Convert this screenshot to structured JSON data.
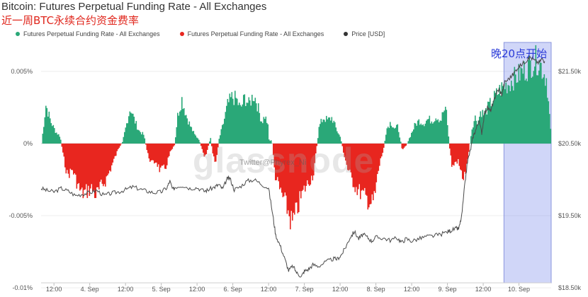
{
  "title": "Bitcoin: Futures Perpetual Funding Rate - All Exchanges",
  "subtitle": "近一周BTC永续合约资金费率",
  "annotation": "晚20点开始",
  "watermark": "glassnode",
  "watermark_handle": "Twitter@Phyrex_Ni",
  "legend": [
    {
      "label": "Futures Perpetual Funding Rate - All Exchanges",
      "color": "#2aa878"
    },
    {
      "label": "Futures Perpetual Funding Rate - All Exchanges",
      "color": "#e8261f"
    },
    {
      "label": "Price [USD]",
      "color": "#333333"
    }
  ],
  "colors": {
    "positive": "#2aa878",
    "negative": "#e8261f",
    "price": "#4a4a4a",
    "highlight": "#aab4ee"
  },
  "chart_data": {
    "type": "area",
    "title": "Bitcoin: Futures Perpetual Funding Rate - All Exchanges",
    "x_ticks": [
      "12:00",
      "4. Sep",
      "12:00",
      "5. Sep",
      "12:00",
      "6. Sep",
      "12:00",
      "7. Sep",
      "12:00",
      "8. Sep",
      "12:00",
      "9. Sep",
      "12:00",
      "10. Sep"
    ],
    "y_left_ticks": [
      "0.005%",
      "0%",
      "-0.005%",
      "-0.01%"
    ],
    "y_left_range": [
      -0.01,
      0.006
    ],
    "y_right_ticks": [
      "$21.50k",
      "$20.50k",
      "$19.50k",
      "$18.50k"
    ],
    "y_right_range": [
      18500,
      21800
    ],
    "x_range_days": [
      3.32,
      10.45
    ],
    "series": [
      {
        "name": "Futures Perpetual Funding Rate - All Exchanges",
        "unit": "%",
        "points": [
          [
            3.32,
            0.0
          ],
          [
            3.38,
            0.0027
          ],
          [
            3.45,
            0.0015
          ],
          [
            3.52,
            0.0008
          ],
          [
            3.58,
            0.0005
          ],
          [
            3.62,
            -0.0008
          ],
          [
            3.68,
            -0.0022
          ],
          [
            3.75,
            -0.0018
          ],
          [
            3.82,
            -0.0028
          ],
          [
            3.88,
            -0.0035
          ],
          [
            3.95,
            -0.0033
          ],
          [
            4.02,
            -0.0031
          ],
          [
            4.08,
            -0.0036
          ],
          [
            4.15,
            -0.003
          ],
          [
            4.22,
            -0.0025
          ],
          [
            4.28,
            -0.0018
          ],
          [
            4.35,
            -0.0009
          ],
          [
            4.4,
            -0.0003
          ],
          [
            4.45,
            0.0001
          ],
          [
            4.5,
            0.0012
          ],
          [
            4.56,
            0.0025
          ],
          [
            4.62,
            0.0016
          ],
          [
            4.68,
            0.0009
          ],
          [
            4.75,
            0.0006
          ],
          [
            4.8,
            -0.0007
          ],
          [
            4.86,
            -0.0014
          ],
          [
            4.92,
            -0.0012
          ],
          [
            4.98,
            -0.0019
          ],
          [
            5.05,
            -0.0017
          ],
          [
            5.12,
            -0.0006
          ],
          [
            5.18,
            -0.0001
          ],
          [
            5.22,
            0.0019
          ],
          [
            5.28,
            0.0031
          ],
          [
            5.34,
            0.002
          ],
          [
            5.4,
            0.0012
          ],
          [
            5.46,
            0.0006
          ],
          [
            5.52,
            0.0003
          ],
          [
            5.56,
            -0.0004
          ],
          [
            5.6,
            -0.0011
          ],
          [
            5.64,
            -0.0004
          ],
          [
            5.68,
            0.0004
          ],
          [
            5.72,
            -0.001
          ],
          [
            5.76,
            -0.0012
          ],
          [
            5.8,
            0.0003
          ],
          [
            5.86,
            0.0014
          ],
          [
            5.92,
            0.0027
          ],
          [
            5.98,
            0.0032
          ],
          [
            6.04,
            0.0031
          ],
          [
            6.1,
            0.0024
          ],
          [
            6.16,
            0.0032
          ],
          [
            6.22,
            0.0027
          ],
          [
            6.28,
            0.0034
          ],
          [
            6.32,
            0.003
          ],
          [
            6.36,
            0.0022
          ],
          [
            6.4,
            0.0015
          ],
          [
            6.44,
            0.0019
          ],
          [
            6.48,
            0.0014
          ],
          [
            6.5,
            0.0002
          ],
          [
            6.54,
            0.0002
          ],
          [
            6.58,
            -0.0021
          ],
          [
            6.64,
            -0.0031
          ],
          [
            6.7,
            -0.0038
          ],
          [
            6.76,
            -0.0046
          ],
          [
            6.82,
            -0.0056
          ],
          [
            6.88,
            -0.0048
          ],
          [
            6.94,
            -0.0038
          ],
          [
            7.0,
            -0.0031
          ],
          [
            7.06,
            -0.0026
          ],
          [
            7.12,
            -0.0021
          ],
          [
            7.16,
            -0.0005
          ],
          [
            7.2,
            0.0012
          ],
          [
            7.26,
            0.0018
          ],
          [
            7.32,
            0.0016
          ],
          [
            7.38,
            0.0018
          ],
          [
            7.44,
            0.001
          ],
          [
            7.5,
            0.0004
          ],
          [
            7.54,
            -0.0006
          ],
          [
            7.6,
            -0.0018
          ],
          [
            7.66,
            -0.0025
          ],
          [
            7.72,
            -0.0031
          ],
          [
            7.78,
            -0.0034
          ],
          [
            7.84,
            -0.0037
          ],
          [
            7.9,
            -0.004
          ],
          [
            7.94,
            -0.0042
          ],
          [
            7.98,
            -0.0036
          ],
          [
            8.02,
            -0.0021
          ],
          [
            8.06,
            -0.0011
          ],
          [
            8.1,
            -0.0004
          ],
          [
            8.14,
            0.001
          ],
          [
            8.2,
            0.0015
          ],
          [
            8.26,
            0.001
          ],
          [
            8.3,
            0.0012
          ],
          [
            8.36,
            -0.0004
          ],
          [
            8.42,
            -0.0001
          ],
          [
            8.48,
            0.0006
          ],
          [
            8.54,
            0.0013
          ],
          [
            8.6,
            0.0016
          ],
          [
            8.66,
            0.0014
          ],
          [
            8.72,
            0.0017
          ],
          [
            8.78,
            0.0016
          ],
          [
            8.84,
            0.0019
          ],
          [
            8.9,
            0.0016
          ],
          [
            8.94,
            0.0023
          ],
          [
            8.98,
            0.0022
          ],
          [
            9.02,
            -0.0002
          ],
          [
            9.06,
            -0.0017
          ],
          [
            9.1,
            -0.0013
          ],
          [
            9.14,
            -0.0012
          ],
          [
            9.18,
            -0.002
          ],
          [
            9.22,
            -0.0024
          ],
          [
            9.26,
            -0.0017
          ],
          [
            9.3,
            -0.0002
          ],
          [
            9.34,
            0.0012
          ],
          [
            9.38,
            0.0018
          ],
          [
            9.42,
            0.0015
          ],
          [
            9.46,
            0.0023
          ],
          [
            9.5,
            0.002
          ],
          [
            9.56,
            0.0025
          ],
          [
            9.62,
            0.003
          ],
          [
            9.68,
            0.0034
          ],
          [
            9.74,
            0.0038
          ],
          [
            9.8,
            0.004
          ],
          [
            9.86,
            0.0042
          ],
          [
            9.92,
            0.0045
          ],
          [
            9.98,
            0.0047
          ],
          [
            10.04,
            0.005
          ],
          [
            10.1,
            0.0052
          ],
          [
            10.16,
            0.0055
          ],
          [
            10.22,
            0.0058
          ],
          [
            10.26,
            0.0057
          ],
          [
            10.3,
            0.0054
          ],
          [
            10.35,
            0.0048
          ],
          [
            10.38,
            0.0045
          ],
          [
            10.45,
            0.0
          ]
        ]
      },
      {
        "name": "Price [USD]",
        "unit": "USD",
        "points": [
          [
            3.32,
            19880
          ],
          [
            3.4,
            19850
          ],
          [
            3.5,
            19830
          ],
          [
            3.6,
            19880
          ],
          [
            3.7,
            19840
          ],
          [
            3.8,
            19780
          ],
          [
            3.9,
            19800
          ],
          [
            4.0,
            19820
          ],
          [
            4.1,
            19850
          ],
          [
            4.2,
            19780
          ],
          [
            4.3,
            19810
          ],
          [
            4.4,
            19830
          ],
          [
            4.5,
            19860
          ],
          [
            4.6,
            19900
          ],
          [
            4.7,
            19870
          ],
          [
            4.8,
            19840
          ],
          [
            4.9,
            19820
          ],
          [
            5.0,
            19830
          ],
          [
            5.08,
            19890
          ],
          [
            5.12,
            19980
          ],
          [
            5.16,
            19860
          ],
          [
            5.2,
            19900
          ],
          [
            5.3,
            19920
          ],
          [
            5.4,
            19880
          ],
          [
            5.5,
            19890
          ],
          [
            5.6,
            19840
          ],
          [
            5.66,
            19860
          ],
          [
            5.75,
            19900
          ],
          [
            5.8,
            19930
          ],
          [
            5.86,
            19870
          ],
          [
            5.92,
            20010
          ],
          [
            5.96,
            20020
          ],
          [
            6.02,
            19860
          ],
          [
            6.1,
            19900
          ],
          [
            6.2,
            19980
          ],
          [
            6.3,
            20000
          ],
          [
            6.4,
            19940
          ],
          [
            6.5,
            19880
          ],
          [
            6.56,
            19500
          ],
          [
            6.6,
            19230
          ],
          [
            6.66,
            19090
          ],
          [
            6.72,
            18920
          ],
          [
            6.78,
            18740
          ],
          [
            6.84,
            18800
          ],
          [
            6.9,
            18700
          ],
          [
            6.96,
            18660
          ],
          [
            7.0,
            18730
          ],
          [
            7.06,
            18760
          ],
          [
            7.12,
            18820
          ],
          [
            7.2,
            18800
          ],
          [
            7.3,
            18860
          ],
          [
            7.4,
            18900
          ],
          [
            7.46,
            18900
          ],
          [
            7.52,
            18960
          ],
          [
            7.58,
            19070
          ],
          [
            7.64,
            19200
          ],
          [
            7.7,
            19280
          ],
          [
            7.76,
            19180
          ],
          [
            7.82,
            19240
          ],
          [
            7.88,
            19200
          ],
          [
            7.94,
            19150
          ],
          [
            8.0,
            19200
          ],
          [
            8.1,
            19190
          ],
          [
            8.2,
            19160
          ],
          [
            8.3,
            19190
          ],
          [
            8.36,
            19130
          ],
          [
            8.42,
            19180
          ],
          [
            8.5,
            19150
          ],
          [
            8.6,
            19180
          ],
          [
            8.7,
            19210
          ],
          [
            8.8,
            19220
          ],
          [
            8.9,
            19240
          ],
          [
            9.0,
            19280
          ],
          [
            9.06,
            19300
          ],
          [
            9.12,
            19320
          ],
          [
            9.16,
            19320
          ],
          [
            9.2,
            19500
          ],
          [
            9.24,
            19900
          ],
          [
            9.28,
            20250
          ],
          [
            9.32,
            20400
          ],
          [
            9.36,
            20600
          ],
          [
            9.4,
            20700
          ],
          [
            9.44,
            20820
          ],
          [
            9.48,
            20650
          ],
          [
            9.52,
            20920
          ],
          [
            9.56,
            21000
          ],
          [
            9.6,
            20950
          ],
          [
            9.64,
            21050
          ],
          [
            9.68,
            21200
          ],
          [
            9.72,
            21250
          ],
          [
            9.76,
            21180
          ],
          [
            9.8,
            21350
          ],
          [
            9.86,
            21400
          ],
          [
            9.92,
            21460
          ],
          [
            9.98,
            21550
          ],
          [
            10.04,
            21600
          ],
          [
            10.1,
            21650
          ],
          [
            10.16,
            21700
          ],
          [
            10.22,
            21650
          ],
          [
            10.28,
            21620
          ],
          [
            10.32,
            21680
          ],
          [
            10.36,
            21640
          ]
        ]
      }
    ],
    "highlight_range_days": [
      9.79,
      10.45
    ]
  }
}
